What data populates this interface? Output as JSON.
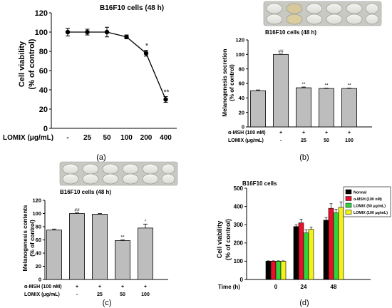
{
  "chart_data": [
    {
      "panel": "(a)",
      "type": "line",
      "title": "B16F10 cells (48 h)",
      "ylabel_line1": "Cell viability",
      "ylabel_line2": "(% of control)",
      "xlabel": "LOMIX (μg/mL)",
      "categories": [
        "-",
        "25",
        "50",
        "100",
        "200",
        "400"
      ],
      "values": [
        100,
        100,
        100,
        95,
        78,
        30
      ],
      "errors": [
        4,
        3,
        5,
        2,
        3,
        3
      ],
      "annotations": [
        "",
        "",
        "",
        "",
        "*",
        "**"
      ],
      "ylim": [
        0,
        120
      ],
      "yticks": [
        "0",
        "20",
        "40",
        "60",
        "80",
        "100",
        "120"
      ]
    },
    {
      "panel": "(b)",
      "type": "bar",
      "title": "B16F10 cells (48 h)",
      "ylabel_line1": "Melanogenesis secretion",
      "ylabel_line2": "(% of control)",
      "row_labels": [
        "α-MSH (100 nM)",
        "LOMIX (μg/mL)"
      ],
      "msh": [
        "-",
        "+",
        "+",
        "+",
        "+"
      ],
      "lomix": [
        "-",
        "-",
        "25",
        "50",
        "100"
      ],
      "values": [
        50,
        100,
        54,
        53,
        53
      ],
      "errors": [
        1,
        0.5,
        1,
        0.5,
        0.5
      ],
      "annotations": [
        "",
        "##",
        "**",
        "**",
        "**"
      ],
      "ylim": [
        0,
        120
      ],
      "yticks": [
        "0",
        "20",
        "40",
        "60",
        "80",
        "100",
        "120"
      ],
      "bar_color": "#bdbdbd"
    },
    {
      "panel": "(c)",
      "type": "bar",
      "title": "B16F10 cells (48 h)",
      "ylabel_line1": "Melanogenesis contents",
      "ylabel_line2": "(% of control)",
      "row_labels": [
        "α-MSH (100 nM)",
        "LOMIX (μg/mL)"
      ],
      "msh": [
        "-",
        "+",
        "+",
        "+",
        "+"
      ],
      "lomix": [
        "-",
        "-",
        "25",
        "50",
        "100"
      ],
      "values": [
        75,
        100,
        99,
        59,
        78
      ],
      "errors": [
        1.5,
        1,
        1,
        1,
        6
      ],
      "annotations": [
        "",
        "##",
        "",
        "**",
        "*"
      ],
      "ylim": [
        0,
        120
      ],
      "yticks": [
        "0",
        "20",
        "40",
        "60",
        "80",
        "100",
        "120"
      ],
      "bar_color": "#bdbdbd"
    },
    {
      "panel": "(d)",
      "type": "bar",
      "title": "B16F10 cells",
      "ylabel_line1": "Cell viability",
      "ylabel_line2": "(% of control)",
      "xlabel": "Time (h)",
      "categories": [
        "0",
        "24",
        "48"
      ],
      "series": [
        {
          "name": "Normal",
          "color": "#000000",
          "values": [
            100,
            290,
            325
          ],
          "errors": [
            2,
            10,
            15
          ]
        },
        {
          "name": "α-MSH (100 nM)",
          "color": "#e8102a",
          "values": [
            100,
            310,
            390
          ],
          "errors": [
            2,
            20,
            25
          ]
        },
        {
          "name": "LOMIX (50 μg/mL)",
          "color": "#33d13d",
          "values": [
            100,
            255,
            365
          ],
          "errors": [
            2,
            18,
            20
          ]
        },
        {
          "name": "LOMIX (100 μg/mL)",
          "color": "#f2f21a",
          "values": [
            100,
            275,
            395
          ],
          "errors": [
            2,
            12,
            30
          ]
        }
      ],
      "ylim": [
        0,
        500
      ],
      "yticks": [
        "0",
        "100",
        "200",
        "300",
        "400",
        "500"
      ],
      "legend_position": "top-right"
    }
  ]
}
